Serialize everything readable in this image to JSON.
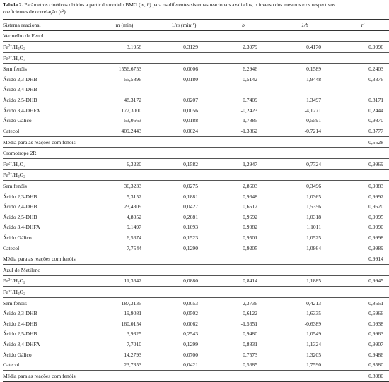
{
  "caption": {
    "label": "Tabela 2.",
    "text1a": " Parâmetros cinéticos obtidos a partir do modelo BMG (",
    "m": "m",
    "comma": ", ",
    "b": "b",
    "text1b": ") para os diferentes sistemas reacionais avaliados, o inverso dos mesmos e os respectivos",
    "text2a": "coeficientes de correlação (r",
    "text2sup": "2",
    "text2b": ")"
  },
  "headers": {
    "c0": "Sistema reacional",
    "c1": "m (min)",
    "c2a": "1/",
    "c2b": "m",
    "c2c": " (min",
    "c2sup": "-1",
    "c2d": ")",
    "c3": "b",
    "c4": "1/b",
    "c5": "r",
    "c5sup": "2"
  },
  "sections": [
    {
      "title": "Vermelho de Fenol",
      "fe2": {
        "a": "Fe",
        "sup": "2+",
        "b": "/H",
        "sub": "2",
        "c": "O",
        "sub2": "2",
        "values": [
          "3,1958",
          "0,3129",
          "2,3979",
          "0,4170",
          "0,9996"
        ]
      },
      "fe3": {
        "a": "Fe",
        "sup": "3+",
        "b": "/H",
        "sub": "2",
        "c": "O",
        "sub2": "2"
      },
      "rows": [
        {
          "label": "Sem fenóis",
          "values": [
            "1556,6753",
            "0,0006",
            "6,2946",
            "0,1589",
            "0,2403"
          ]
        },
        {
          "label": "Ácido 2,3-DHB",
          "values": [
            "55,5896",
            "0,0180",
            "0,5142",
            "1,9448",
            "0,3376"
          ]
        },
        {
          "label": "Ácido 2,4-DHB",
          "values": [
            "-",
            "-",
            "-",
            "-",
            "-"
          ]
        },
        {
          "label": "Ácido 2,5-DHB",
          "values": [
            "48,3172",
            "0,0207",
            "0,7409",
            "1,3497",
            "0,8171"
          ]
        },
        {
          "label": "Ácido 3,4-DHFA",
          "values": [
            "177,3000",
            "0,0056",
            "-0,2423",
            "-4,1271",
            "0,2444"
          ]
        },
        {
          "label": "Ácido Gálico",
          "values": [
            "53,0663",
            "0,0188",
            "1,7885",
            "0,5591",
            "0,9870"
          ]
        },
        {
          "label": "Catecol",
          "values": [
            "409,2443",
            "0,0024",
            "-1,3862",
            "-0,7214",
            "0,3777"
          ]
        }
      ],
      "mean": {
        "label": "Média para as reações com fenóis",
        "value": "0,5528"
      }
    },
    {
      "title": "Cromotrope 2R",
      "fe2": {
        "a": "Fe",
        "sup": "2+",
        "b": "/H",
        "sub": "2",
        "c": "O",
        "sub2": "2",
        "values": [
          "6,3220",
          "0,1582",
          "1,2947",
          "0,7724",
          "0,9969"
        ]
      },
      "fe3": {
        "a": "Fe",
        "sup": "3+",
        "b": "/H",
        "sub": "2",
        "c": "O",
        "sub2": "2"
      },
      "rows": [
        {
          "label": "Sem fenóis",
          "values": [
            "36,3233",
            "0,0275",
            "2,8603",
            "0,3496",
            "0,9383"
          ]
        },
        {
          "label": "Ácido 2,3-DHB",
          "values": [
            "5,3152",
            "0,1881",
            "0,9648",
            "1,0365",
            "0,9992"
          ]
        },
        {
          "label": "Ácido 2,4-DHB",
          "values": [
            "23,4309",
            "0,0427",
            "0,6512",
            "1,5356",
            "0,9520"
          ]
        },
        {
          "label": "Ácido 2,5-DHB",
          "values": [
            "4,8052",
            "0,2081",
            "0,9692",
            "1,0318",
            "0,9995"
          ]
        },
        {
          "label": "Ácido 3,4-DHFA",
          "values": [
            "9,1497",
            "0,1093",
            "0,9082",
            "1,1011",
            "0,9990"
          ]
        },
        {
          "label": "Ácido Gálico",
          "values": [
            "6,5674",
            "0,1523",
            "0,9501",
            "1,0525",
            "0,9998"
          ]
        },
        {
          "label": "Catecol",
          "values": [
            "7,7544",
            "0,1290",
            "0,9205",
            "1,0864",
            "0,9989"
          ]
        }
      ],
      "mean": {
        "label": "Média para as reações com fenóis",
        "value": "0,9914"
      }
    },
    {
      "title": "Azul de Metileno",
      "fe2": {
        "a": "Fe",
        "sup": "2+",
        "b": "/H",
        "sub": "2",
        "c": "O",
        "sub2": "2",
        "values": [
          "11,3642",
          "0,0880",
          "0,8414",
          "1,1885",
          "0,9945"
        ]
      },
      "fe3": {
        "a": "Fe",
        "sup": "3+",
        "b": "/H",
        "sub": "2",
        "c": "O",
        "sub2": "2"
      },
      "rows": [
        {
          "label": "Sem fenóis",
          "values": [
            "187,3135",
            "0,0053",
            "-2,3736",
            "-0,4213",
            "0,8651"
          ]
        },
        {
          "label": "Ácido 2,3-DHB",
          "values": [
            "19,9081",
            "0,0502",
            "0,6122",
            "1,6335",
            "0,6966"
          ]
        },
        {
          "label": "Ácido 2,4-DHB",
          "values": [
            "160,0154",
            "0,0062",
            "-1,5651",
            "-0,6389",
            "0,0938"
          ]
        },
        {
          "label": "Ácido 2,5-DHB",
          "values": [
            "3,9325",
            "0,2543",
            "0,9480",
            "1,0549",
            "0,9963"
          ]
        },
        {
          "label": "Ácido 3,4-DHFA",
          "values": [
            "7,7010",
            "0,1299",
            "0,8831",
            "1,1324",
            "0,9907"
          ]
        },
        {
          "label": "Ácido Gálico",
          "values": [
            "14,2793",
            "0,0700",
            "0,7573",
            "1,3205",
            "0,9486"
          ]
        },
        {
          "label": "Catecol",
          "values": [
            "23,7353",
            "0,0421",
            "0,5685",
            "1,7590",
            "0,8580"
          ]
        }
      ],
      "mean": {
        "label": "Média para as reações com fenóis",
        "value": "0,8980"
      }
    }
  ]
}
